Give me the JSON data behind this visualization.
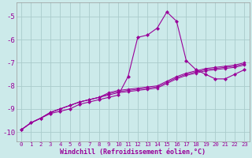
{
  "background_color": "#cceaea",
  "grid_color": "#aacccc",
  "line_color": "#990099",
  "xlabel": "Windchill (Refroidissement éolien,°C)",
  "xlim": [
    -0.5,
    23.5
  ],
  "ylim": [
    -10.4,
    -4.4
  ],
  "yticks": [
    -10,
    -9,
    -8,
    -7,
    -6,
    -5
  ],
  "xticks": [
    0,
    1,
    2,
    3,
    4,
    5,
    6,
    7,
    8,
    9,
    10,
    11,
    12,
    13,
    14,
    15,
    16,
    17,
    18,
    19,
    20,
    21,
    22,
    23
  ],
  "line1_x": [
    0,
    1,
    2,
    3,
    4,
    5,
    6,
    7,
    8,
    9,
    10,
    11,
    12,
    13,
    14,
    15,
    16,
    17,
    18,
    19,
    20,
    21,
    22,
    23
  ],
  "line1_y": [
    -9.9,
    -9.6,
    -9.4,
    -9.2,
    -9.1,
    -9.0,
    -8.8,
    -8.7,
    -8.6,
    -8.5,
    -8.4,
    -7.6,
    -5.9,
    -5.8,
    -5.5,
    -4.8,
    -5.2,
    -6.9,
    -7.3,
    -7.5,
    -7.7,
    -7.7,
    -7.5,
    -7.3
  ],
  "line2_x": [
    0,
    1,
    2,
    3,
    4,
    5,
    6,
    7,
    8,
    9,
    10,
    11,
    12,
    13,
    14,
    15,
    16,
    17,
    18,
    19,
    20,
    21,
    22,
    23
  ],
  "line2_y": [
    -9.9,
    -9.6,
    -9.4,
    -9.15,
    -9.0,
    -8.85,
    -8.7,
    -8.6,
    -8.5,
    -8.4,
    -8.3,
    -8.25,
    -8.2,
    -8.15,
    -8.1,
    -7.9,
    -7.7,
    -7.55,
    -7.45,
    -7.35,
    -7.3,
    -7.25,
    -7.2,
    -7.1
  ],
  "line3_x": [
    0,
    1,
    2,
    3,
    4,
    5,
    6,
    7,
    8,
    9,
    10,
    11,
    12,
    13,
    14,
    15,
    16,
    17,
    18,
    19,
    20,
    21,
    22,
    23
  ],
  "line3_y": [
    -9.9,
    -9.6,
    -9.4,
    -9.15,
    -9.0,
    -8.85,
    -8.7,
    -8.6,
    -8.5,
    -8.35,
    -8.25,
    -8.2,
    -8.15,
    -8.1,
    -8.05,
    -7.85,
    -7.65,
    -7.5,
    -7.4,
    -7.3,
    -7.25,
    -7.2,
    -7.15,
    -7.05
  ],
  "line4_x": [
    0,
    1,
    2,
    3,
    4,
    5,
    6,
    7,
    8,
    9,
    10,
    11,
    12,
    13,
    14,
    15,
    16,
    17,
    18,
    19,
    20,
    21,
    22,
    23
  ],
  "line4_y": [
    -9.9,
    -9.6,
    -9.4,
    -9.15,
    -9.0,
    -8.85,
    -8.7,
    -8.6,
    -8.5,
    -8.3,
    -8.2,
    -8.15,
    -8.1,
    -8.05,
    -8.0,
    -7.8,
    -7.6,
    -7.45,
    -7.35,
    -7.25,
    -7.2,
    -7.15,
    -7.1,
    -7.0
  ]
}
